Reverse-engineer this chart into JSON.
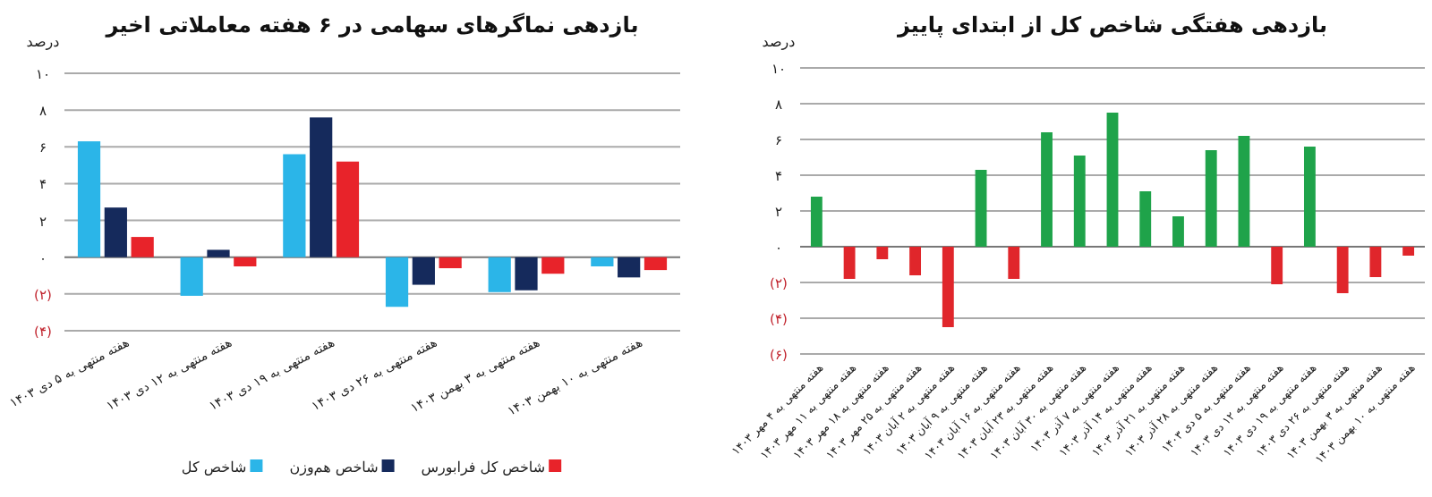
{
  "chart_data": [
    {
      "type": "bar",
      "title": "بازدهی نماگرهای سهامی در ۶ هفته معاملاتی اخیر",
      "ylabel": "درصد",
      "categories": [
        "هفته منتهی به ۵ دی ۱۴۰۳",
        "هفته منتهی به ۱۲ دی ۱۴۰۳",
        "هفته منتهی به ۱۹ دی ۱۴۰۳",
        "هفته منتهی به ۲۶ دی ۱۴۰۳",
        "هفته منتهی به ۳ بهمن ۱۴۰۳",
        "هفته منتهی به ۱۰ بهمن ۱۴۰۳"
      ],
      "series": [
        {
          "name": "شاخص کل",
          "color": "#2bb5e8",
          "values": [
            6.3,
            -2.1,
            5.6,
            -2.7,
            -1.9,
            -0.5
          ]
        },
        {
          "name": "شاخص هم‌وزن",
          "color": "#152a5c",
          "values": [
            2.7,
            0.4,
            7.6,
            -1.5,
            -1.8,
            -1.1
          ]
        },
        {
          "name": "شاخص کل فرابورس",
          "color": "#e8232a",
          "values": [
            1.1,
            -0.5,
            5.2,
            -0.6,
            -0.9,
            -0.7
          ]
        }
      ],
      "ylim": [
        -4,
        10
      ],
      "yticks": [
        {
          "value": -4,
          "label": "(۴)"
        },
        {
          "value": -2,
          "label": "(۲)"
        },
        {
          "value": 0,
          "label": "۰"
        },
        {
          "value": 2,
          "label": "۲"
        },
        {
          "value": 4,
          "label": "۴"
        },
        {
          "value": 6,
          "label": "۶"
        },
        {
          "value": 8,
          "label": "۸"
        },
        {
          "value": 10,
          "label": "۱۰"
        }
      ],
      "grid": "y",
      "legend": "bottom"
    },
    {
      "type": "bar",
      "title": "بازدهی هفتگی شاخص کل از ابتدای پاییز",
      "ylabel": "درصد",
      "categories": [
        "هفته منتهی به ۴ مهر ۱۴۰۳",
        "هفته منتهی به ۱۱ مهر ۱۴۰۳",
        "هفته منتهی به ۱۸ مهر ۱۴۰۳",
        "هفته منتهی به ۲۵ مهر ۱۴۰۳",
        "هفته منتهی به ۲ آبان ۱۴۰۳",
        "هفته منتهی به ۹ آبان ۱۴۰۳",
        "هفته منتهی به ۱۶ آبان ۱۴۰۳",
        "هفته منتهی به ۲۳ آبان ۱۴۰۳",
        "هفته منتهی به ۳۰ آبان ۱۴۰۳",
        "هفته منتهی به ۷ آذر ۱۴۰۳",
        "هفته منتهی به ۱۴ آذر ۱۴۰۳",
        "هفته منتهی به ۲۱ آذر ۱۴۰۳",
        "هفته منتهی به ۲۸ آذر ۱۴۰۳",
        "هفته منتهی به ۵ دی ۱۴۰۳",
        "هفته منتهی به ۱۲ دی ۱۴۰۳",
        "هفته منتهی به ۱۹ دی ۱۴۰۳",
        "هفته منتهی به ۲۶ دی ۱۴۰۳",
        "هفته منتهی به ۳ بهمن ۱۴۰۳",
        "هفته منتهی به ۱۰ بهمن ۱۴۰۳"
      ],
      "values": [
        2.8,
        -1.8,
        -0.7,
        -1.6,
        -4.5,
        4.3,
        -1.8,
        6.4,
        5.1,
        7.5,
        3.1,
        1.7,
        5.4,
        6.2,
        -2.1,
        5.6,
        -2.6,
        -1.7,
        -0.5
      ],
      "colors": [
        "#1fa34a",
        "#e0262b",
        "#e0262b",
        "#e0262b",
        "#e0262b",
        "#1fa34a",
        "#e0262b",
        "#1fa34a",
        "#1fa34a",
        "#1fa34a",
        "#1fa34a",
        "#1fa34a",
        "#1fa34a",
        "#1fa34a",
        "#e0262b",
        "#1fa34a",
        "#e0262b",
        "#e0262b",
        "#e0262b"
      ],
      "ylim": [
        -6,
        10
      ],
      "yticks": [
        {
          "value": -6,
          "label": "(۶)"
        },
        {
          "value": -4,
          "label": "(۴)"
        },
        {
          "value": -2,
          "label": "(۲)"
        },
        {
          "value": 0,
          "label": "۰"
        },
        {
          "value": 2,
          "label": "۲"
        },
        {
          "value": 4,
          "label": "۴"
        },
        {
          "value": 6,
          "label": "۶"
        },
        {
          "value": 8,
          "label": "۸"
        },
        {
          "value": 10,
          "label": "۱۰"
        }
      ],
      "grid": "y"
    }
  ]
}
